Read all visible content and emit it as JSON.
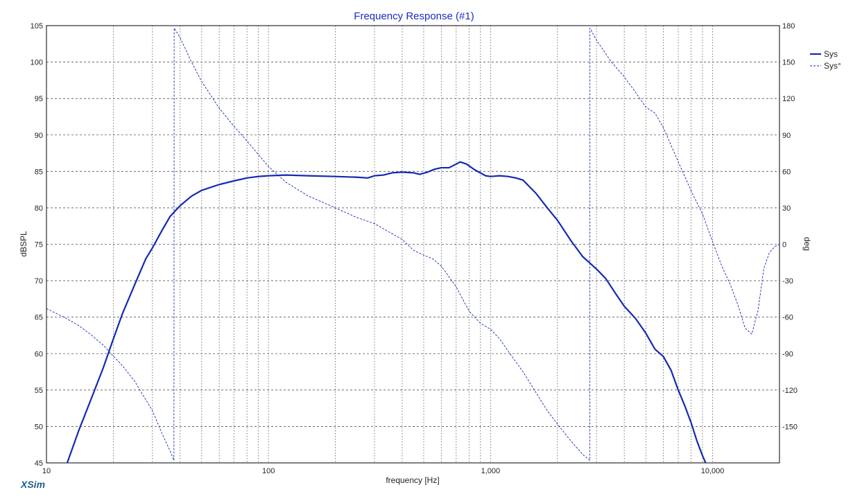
{
  "chart_data": {
    "type": "line",
    "title": "Frequency Response (#1)",
    "xlabel": "frequency [Hz]",
    "ylabel": "dBSPL",
    "y2label": "deg",
    "x_scale": "log",
    "xlim": [
      10,
      20000
    ],
    "ylim": [
      45,
      105
    ],
    "y2lim": [
      -180,
      180
    ],
    "grid": true,
    "legend_position": "top-right",
    "x_tick_labels": [
      {
        "value": 10,
        "label": "10"
      },
      {
        "value": 100,
        "label": "100"
      },
      {
        "value": 1000,
        "label": "1,000"
      },
      {
        "value": 10000,
        "label": "10,000"
      }
    ],
    "y_ticks": [
      45,
      50,
      55,
      60,
      65,
      70,
      75,
      80,
      85,
      90,
      95,
      100,
      105
    ],
    "y2_ticks": [
      -150,
      -120,
      -90,
      -60,
      -30,
      0,
      30,
      60,
      90,
      120,
      150,
      180
    ],
    "series": [
      {
        "name": "Sys",
        "axis": "left",
        "style": "solid",
        "color": "#1428b4",
        "points": [
          [
            12.4,
            45
          ],
          [
            14,
            49.5
          ],
          [
            16,
            54
          ],
          [
            18,
            58
          ],
          [
            20,
            62
          ],
          [
            22,
            65.5
          ],
          [
            25,
            69.5
          ],
          [
            28,
            73
          ],
          [
            30,
            74.5
          ],
          [
            33,
            76.8
          ],
          [
            36,
            78.8
          ],
          [
            40,
            80.3
          ],
          [
            45,
            81.6
          ],
          [
            50,
            82.4
          ],
          [
            60,
            83.2
          ],
          [
            70,
            83.7
          ],
          [
            80,
            84.1
          ],
          [
            90,
            84.3
          ],
          [
            100,
            84.4
          ],
          [
            120,
            84.5
          ],
          [
            150,
            84.4
          ],
          [
            200,
            84.3
          ],
          [
            250,
            84.2
          ],
          [
            280,
            84.1
          ],
          [
            300,
            84.4
          ],
          [
            330,
            84.5
          ],
          [
            360,
            84.8
          ],
          [
            400,
            84.9
          ],
          [
            450,
            84.8
          ],
          [
            480,
            84.6
          ],
          [
            520,
            84.9
          ],
          [
            560,
            85.3
          ],
          [
            600,
            85.5
          ],
          [
            650,
            85.5
          ],
          [
            700,
            86.0
          ],
          [
            730,
            86.3
          ],
          [
            780,
            86.0
          ],
          [
            850,
            85.2
          ],
          [
            950,
            84.4
          ],
          [
            1000,
            84.3
          ],
          [
            1100,
            84.4
          ],
          [
            1200,
            84.3
          ],
          [
            1300,
            84.1
          ],
          [
            1400,
            83.8
          ],
          [
            1600,
            82.0
          ],
          [
            1800,
            80.0
          ],
          [
            2000,
            78.3
          ],
          [
            2300,
            75.5
          ],
          [
            2600,
            73.3
          ],
          [
            3000,
            71.6
          ],
          [
            3300,
            70.3
          ],
          [
            3700,
            68.0
          ],
          [
            4000,
            66.5
          ],
          [
            4500,
            64.8
          ],
          [
            5000,
            62.8
          ],
          [
            5500,
            60.6
          ],
          [
            6000,
            59.6
          ],
          [
            6500,
            57.7
          ],
          [
            7000,
            55.0
          ],
          [
            7500,
            52.8
          ],
          [
            8000,
            50.5
          ],
          [
            8500,
            48.0
          ],
          [
            9000,
            46.0
          ],
          [
            9300,
            45
          ]
        ]
      },
      {
        "name": "Sys°",
        "axis": "right",
        "style": "dashed",
        "color": "#1428b4",
        "points": [
          [
            10,
            -53
          ],
          [
            12,
            -60
          ],
          [
            14,
            -67
          ],
          [
            16,
            -75
          ],
          [
            18,
            -83
          ],
          [
            20,
            -92
          ],
          [
            22,
            -100
          ],
          [
            25,
            -113
          ],
          [
            28,
            -128
          ],
          [
            30,
            -137
          ],
          [
            33,
            -155
          ],
          [
            36,
            -170
          ],
          [
            37.5,
            -178
          ],
          [
            37.6,
            178
          ],
          [
            40,
            170
          ],
          [
            45,
            150
          ],
          [
            50,
            134
          ],
          [
            60,
            112
          ],
          [
            70,
            97
          ],
          [
            80,
            85
          ],
          [
            100,
            64
          ],
          [
            120,
            51
          ],
          [
            150,
            40
          ],
          [
            200,
            30
          ],
          [
            250,
            22
          ],
          [
            300,
            17
          ],
          [
            350,
            10
          ],
          [
            400,
            4
          ],
          [
            450,
            -5
          ],
          [
            500,
            -9
          ],
          [
            550,
            -12
          ],
          [
            600,
            -18
          ],
          [
            700,
            -35
          ],
          [
            800,
            -55
          ],
          [
            900,
            -65
          ],
          [
            1000,
            -70
          ],
          [
            1100,
            -78
          ],
          [
            1200,
            -88
          ],
          [
            1400,
            -105
          ],
          [
            1600,
            -122
          ],
          [
            1800,
            -137
          ],
          [
            2000,
            -148
          ],
          [
            2300,
            -162
          ],
          [
            2600,
            -173
          ],
          [
            2800,
            -178
          ],
          [
            2801,
            178
          ],
          [
            3000,
            168
          ],
          [
            3500,
            150
          ],
          [
            4000,
            138
          ],
          [
            4500,
            125
          ],
          [
            5000,
            113
          ],
          [
            5500,
            108
          ],
          [
            6000,
            96
          ],
          [
            7000,
            68
          ],
          [
            8000,
            44
          ],
          [
            9000,
            25
          ],
          [
            10000,
            2
          ],
          [
            11000,
            -18
          ],
          [
            12000,
            -33
          ],
          [
            13000,
            -50
          ],
          [
            14000,
            -69
          ],
          [
            15000,
            -74
          ],
          [
            16000,
            -55
          ],
          [
            17000,
            -20
          ],
          [
            18000,
            -7
          ],
          [
            19000,
            -2
          ],
          [
            20000,
            0
          ]
        ]
      }
    ]
  },
  "brand": "XSim"
}
